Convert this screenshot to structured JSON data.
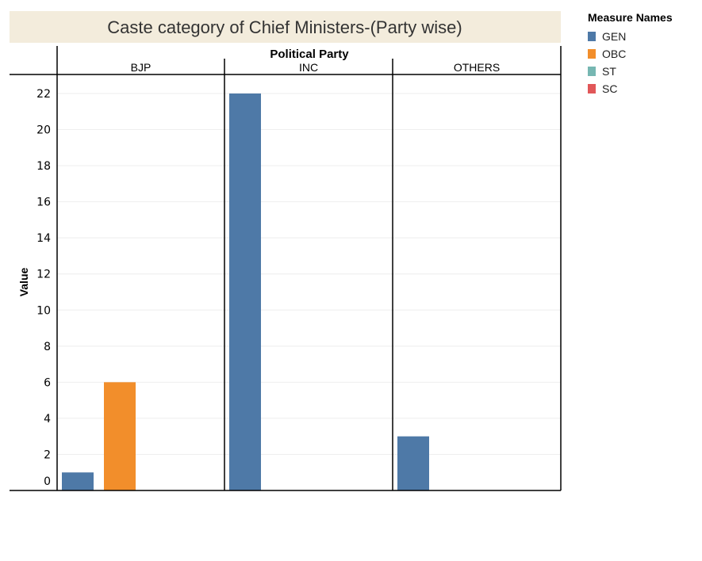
{
  "chart_data": {
    "type": "bar",
    "title": "Caste category of Chief Ministers-(Party wise)",
    "column_header": "Political Party",
    "categories": [
      "BJP",
      "INC",
      "OTHERS"
    ],
    "series": [
      {
        "name": "GEN",
        "color": "#4e79a7",
        "values": [
          1,
          22,
          3
        ]
      },
      {
        "name": "OBC",
        "color": "#f28e2b",
        "values": [
          6,
          0,
          0
        ]
      },
      {
        "name": "ST",
        "color": "#76b7b2",
        "values": [
          0,
          0,
          0
        ]
      },
      {
        "name": "SC",
        "color": "#e15759",
        "values": [
          0,
          0,
          0
        ]
      }
    ],
    "ylabel": "Value",
    "xlabel": "",
    "ylim": [
      0,
      22
    ],
    "yticks": [
      "0",
      "2",
      "4",
      "6",
      "8",
      "10",
      "12",
      "14",
      "16",
      "18",
      "20",
      "22"
    ],
    "grid": true,
    "legend_title": "Measure Names",
    "legend_placement": "right"
  }
}
